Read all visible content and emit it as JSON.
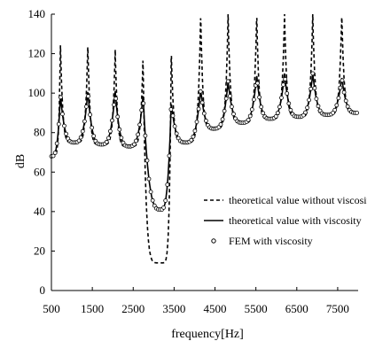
{
  "chart_data": {
    "type": "line",
    "title": "",
    "xlabel": "frequency[Hz]",
    "ylabel": "dB",
    "xlim": [
      500,
      8000
    ],
    "ylim": [
      0,
      140
    ],
    "x_ticks": [
      500,
      1500,
      2500,
      3500,
      4500,
      5500,
      6500,
      7500
    ],
    "y_ticks": [
      0,
      20,
      40,
      60,
      80,
      100,
      120,
      140
    ],
    "grid": false,
    "legend_position": "lower-right",
    "peaks": [
      {
        "f": 720,
        "no_visc": 126,
        "visc": 99
      },
      {
        "f": 1390,
        "no_visc": 125,
        "visc": 101
      },
      {
        "f": 2060,
        "no_visc": 122,
        "visc": 101
      },
      {
        "f": 2740,
        "no_visc": 118,
        "visc": 99
      },
      {
        "f": 3430,
        "no_visc": 122,
        "visc": 95
      },
      {
        "f": 4150,
        "no_visc": 140,
        "visc": 102
      },
      {
        "f": 4820,
        "no_visc": 140,
        "visc": 106
      },
      {
        "f": 5520,
        "no_visc": 140,
        "visc": 109
      },
      {
        "f": 6200,
        "no_visc": 140,
        "visc": 110
      },
      {
        "f": 6890,
        "no_visc": 140,
        "visc": 110
      },
      {
        "f": 7600,
        "no_visc": 140,
        "visc": 108
      }
    ],
    "troughs": [
      {
        "f": 500,
        "v": 68
      },
      {
        "f": 1060,
        "v": 75
      },
      {
        "f": 1720,
        "v": 74
      },
      {
        "f": 2400,
        "v": 73
      },
      {
        "f": 3170,
        "v": 41,
        "no_visc": 14
      },
      {
        "f": 3780,
        "v": 75
      },
      {
        "f": 4480,
        "v": 82
      },
      {
        "f": 5170,
        "v": 85
      },
      {
        "f": 5850,
        "v": 87
      },
      {
        "f": 6540,
        "v": 88
      },
      {
        "f": 7240,
        "v": 89
      },
      {
        "f": 7950,
        "v": 90
      }
    ],
    "series": [
      {
        "name": "theoretical value without viscosity",
        "style": "dashed-line"
      },
      {
        "name": "theoretical value with viscosity",
        "style": "solid-line"
      },
      {
        "name": "FEM with viscosity",
        "style": "open-circle-marker"
      }
    ],
    "colors": {
      "line": "#000000",
      "marker_fill": "#ffffff"
    }
  }
}
